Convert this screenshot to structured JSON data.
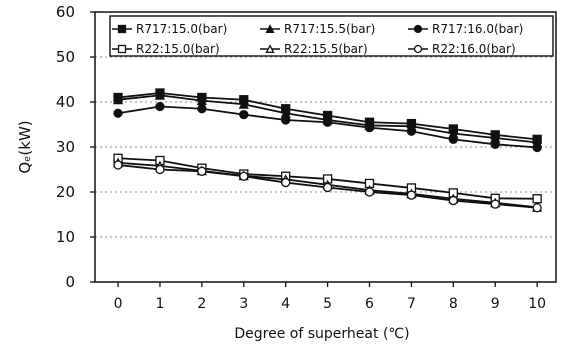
{
  "chart_data": {
    "type": "line",
    "xlabel": "Degree of superheat (℃)",
    "ylabel": "Qₑ(kW)",
    "x": [
      0,
      1,
      2,
      3,
      4,
      5,
      6,
      7,
      8,
      9,
      10
    ],
    "xticks": [
      "0",
      "1",
      "2",
      "3",
      "4",
      "5",
      "6",
      "7",
      "8",
      "9",
      "10"
    ],
    "yticks": [
      "0",
      "10",
      "20",
      "30",
      "40",
      "50",
      "60"
    ],
    "ylim": [
      0,
      60
    ],
    "xlim": [
      -0.55,
      10.45
    ],
    "grid": "horizontal-dashed",
    "legend_position": "top",
    "series": [
      {
        "name": "R717:15.0(bar)",
        "marker": "filled-square",
        "values": [
          41.0,
          42.0,
          41.0,
          40.5,
          38.5,
          37.0,
          35.5,
          35.2,
          34.0,
          32.7,
          31.7
        ]
      },
      {
        "name": "R717:15.5(bar)",
        "marker": "filled-triangle",
        "values": [
          40.5,
          41.5,
          40.3,
          39.5,
          37.5,
          36.0,
          34.8,
          34.6,
          33.0,
          32.0,
          31.0
        ]
      },
      {
        "name": "R717:16.0(bar)",
        "marker": "filled-circle",
        "values": [
          37.5,
          39.0,
          38.5,
          37.2,
          36.0,
          35.5,
          34.3,
          33.5,
          31.7,
          30.6,
          29.9
        ]
      },
      {
        "name": "R22:15.0(bar)",
        "marker": "open-square",
        "values": [
          27.5,
          27.0,
          25.3,
          24.0,
          23.5,
          22.9,
          21.9,
          20.9,
          19.8,
          18.6,
          18.5
        ]
      },
      {
        "name": "R22:15.5(bar)",
        "marker": "open-triangle",
        "values": [
          26.5,
          25.8,
          24.7,
          23.6,
          22.8,
          21.6,
          20.4,
          19.6,
          18.5,
          17.6,
          16.6
        ]
      },
      {
        "name": "R22:16.0(bar)",
        "marker": "open-circle",
        "values": [
          26.0,
          25.0,
          24.6,
          23.5,
          22.1,
          21.0,
          20.0,
          19.3,
          18.1,
          17.3,
          16.5
        ]
      }
    ]
  }
}
